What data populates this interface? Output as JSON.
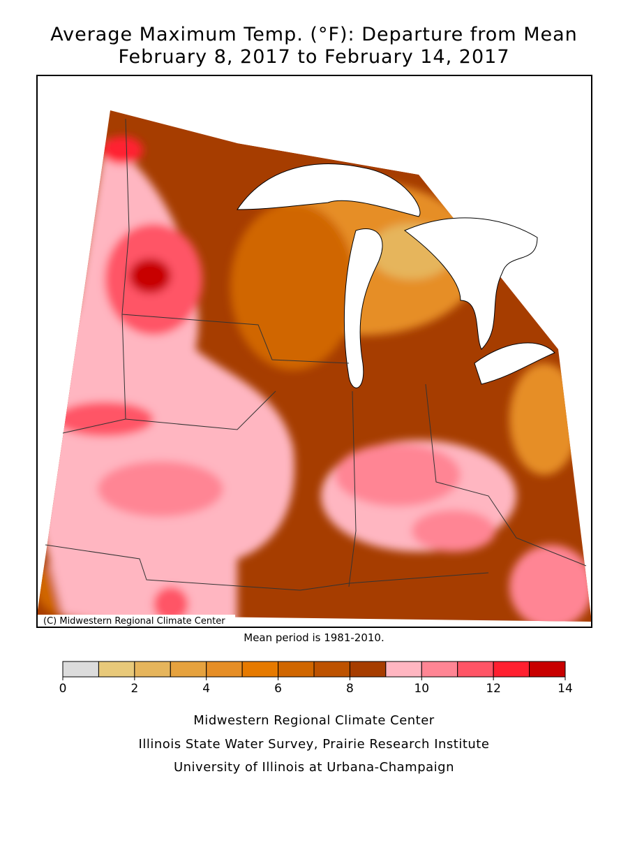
{
  "header": {
    "title": [
      "Average Maximum Temp. (°F): Departure from Mean",
      "February 8, 2017 to February 14, 2017"
    ]
  },
  "map": {
    "credit": "(C) Midwestern Regional Climate Center",
    "note": "Mean period is 1981-2010."
  },
  "colorbar": {
    "bins": [
      0,
      1,
      2,
      3,
      4,
      5,
      6,
      7,
      8,
      9,
      10,
      11,
      12,
      13,
      14
    ],
    "colors": [
      "#dcdcdc",
      "#e8c97a",
      "#e6b55c",
      "#e6a23e",
      "#e68e26",
      "#e67a00",
      "#d06600",
      "#bd5200",
      "#a63d00",
      "#ffb6c1",
      "#ff8594",
      "#ff5566",
      "#ff2030",
      "#c80000"
    ],
    "ticks": [
      0,
      2,
      4,
      6,
      8,
      10,
      12,
      14
    ]
  },
  "footer": [
    "Midwestern Regional Climate Center",
    "Illinois State Water Survey, Prairie Research Institute",
    "University of Illinois at Urbana-Champaign"
  ]
}
